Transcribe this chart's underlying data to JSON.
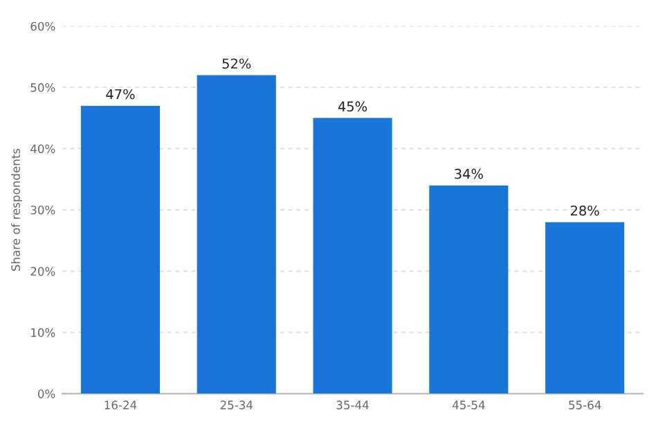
{
  "chart_data": {
    "type": "bar",
    "ylabel": "Share of respondents",
    "categories": [
      "16-24",
      "25-34",
      "35-44",
      "45-54",
      "55-64"
    ],
    "series": [
      {
        "color": "#1976d8",
        "values": [
          47,
          52,
          45,
          34,
          28
        ]
      }
    ],
    "value_labels": [
      "47%",
      "52%",
      "45%",
      "34%",
      "28%"
    ],
    "ylim": [
      0,
      60
    ],
    "yticks": [
      {
        "value": 0,
        "label": "0%"
      },
      {
        "value": 10,
        "label": "10%"
      },
      {
        "value": 20,
        "label": "20%"
      },
      {
        "value": 30,
        "label": "30%"
      },
      {
        "value": 40,
        "label": "40%"
      },
      {
        "value": 50,
        "label": "50%"
      },
      {
        "value": 60,
        "label": "60%"
      }
    ],
    "grid": "y"
  }
}
